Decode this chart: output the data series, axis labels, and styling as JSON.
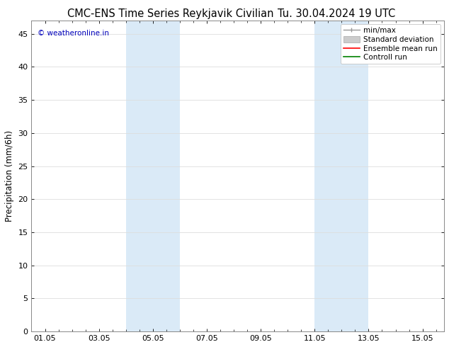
{
  "title_left": "CMC-ENS Time Series Reykjavik Civilian",
  "title_right": "Tu. 30.04.2024 19 UTC",
  "ylabel": "Precipitation (mm/6h)",
  "ylim": [
    0,
    47
  ],
  "yticks": [
    0,
    5,
    10,
    15,
    20,
    25,
    30,
    35,
    40,
    45
  ],
  "xlim": [
    -0.5,
    14.8
  ],
  "xtick_labels": [
    "01.05",
    "03.05",
    "05.05",
    "07.05",
    "09.05",
    "11.05",
    "13.05",
    "15.05"
  ],
  "xtick_positions": [
    0,
    2,
    4,
    6,
    8,
    10,
    12,
    14
  ],
  "shaded_bands": [
    {
      "xmin": 3.0,
      "xmax": 5.0,
      "color": "#daeaf7"
    },
    {
      "xmin": 10.0,
      "xmax": 12.0,
      "color": "#daeaf7"
    }
  ],
  "watermark": "© weatheronline.in",
  "watermark_color": "#0000bb",
  "legend_labels": [
    "min/max",
    "Standard deviation",
    "Ensemble mean run",
    "Controll run"
  ],
  "legend_colors": [
    "#999999",
    "#cccccc",
    "#ff0000",
    "#008000"
  ],
  "background_color": "#ffffff",
  "grid_color": "#dddddd",
  "spine_color": "#888888",
  "title_fontsize": 10.5,
  "tick_fontsize": 8,
  "label_fontsize": 8.5,
  "legend_fontsize": 7.5
}
